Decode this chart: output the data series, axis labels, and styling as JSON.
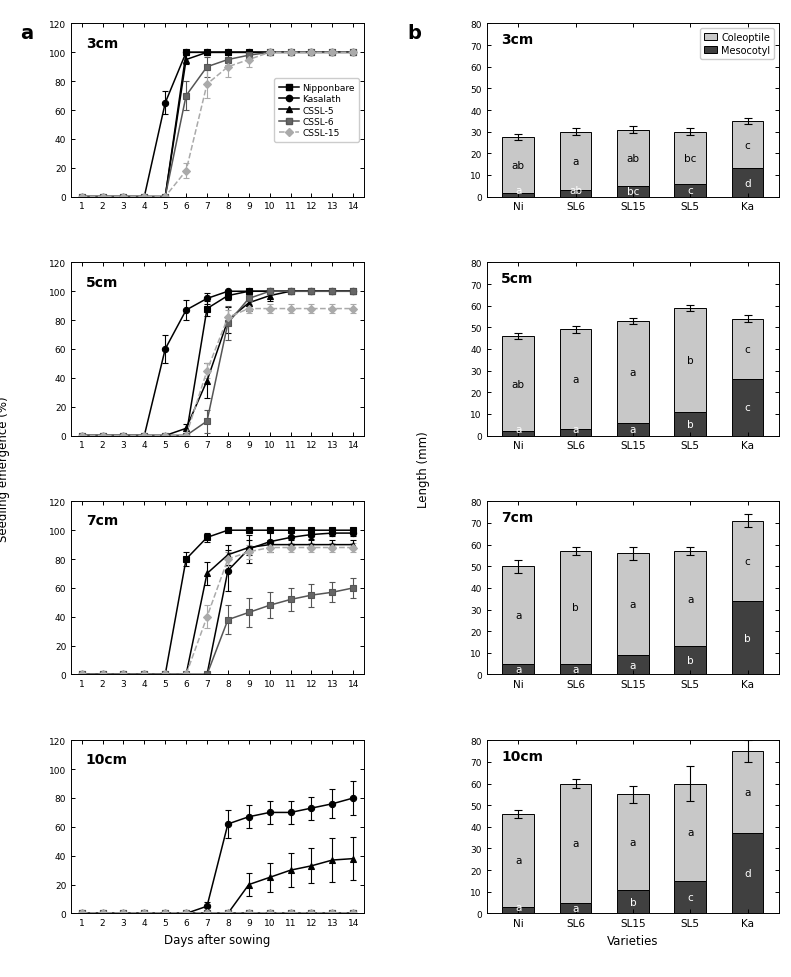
{
  "days": [
    1,
    2,
    3,
    4,
    5,
    6,
    7,
    8,
    9,
    10,
    11,
    12,
    13,
    14
  ],
  "line_labels": [
    "Nipponbare",
    "Kasalath",
    "CSSL-5",
    "CSSL-6",
    "CSSL-15"
  ],
  "line_colors": [
    "#000000",
    "#000000",
    "#000000",
    "#555555",
    "#aaaaaa"
  ],
  "line_styles": [
    "-",
    "-",
    "-",
    "-",
    "--"
  ],
  "line_markers": [
    "s",
    "o",
    "^",
    "s",
    "D"
  ],
  "line_markerfacecolors": [
    "#000000",
    "#000000",
    "#000000",
    "#666666",
    "#aaaaaa"
  ],
  "depths": [
    "3cm",
    "5cm",
    "7cm",
    "10cm"
  ],
  "emergence": {
    "3cm": {
      "Nipponbare": [
        0,
        0,
        0,
        0,
        0,
        100,
        100,
        100,
        100,
        100,
        100,
        100,
        100,
        100
      ],
      "Kasalath": [
        0,
        0,
        0,
        0,
        65,
        100,
        100,
        100,
        100,
        100,
        100,
        100,
        100,
        100
      ],
      "CSSL-5": [
        0,
        0,
        0,
        0,
        0,
        95,
        100,
        100,
        100,
        100,
        100,
        100,
        100,
        100
      ],
      "CSSL-6": [
        0,
        0,
        0,
        0,
        0,
        70,
        90,
        95,
        98,
        100,
        100,
        100,
        100,
        100
      ],
      "CSSL-15": [
        0,
        0,
        0,
        0,
        0,
        18,
        78,
        90,
        95,
        100,
        100,
        100,
        100,
        100
      ]
    },
    "5cm": {
      "Nipponbare": [
        0,
        0,
        0,
        0,
        0,
        0,
        88,
        97,
        100,
        100,
        100,
        100,
        100,
        100
      ],
      "Kasalath": [
        0,
        0,
        0,
        0,
        60,
        87,
        95,
        100,
        100,
        100,
        100,
        100,
        100,
        100
      ],
      "CSSL-5": [
        0,
        0,
        0,
        0,
        0,
        5,
        38,
        80,
        92,
        97,
        100,
        100,
        100,
        100
      ],
      "CSSL-6": [
        0,
        0,
        0,
        0,
        0,
        0,
        10,
        78,
        95,
        100,
        100,
        100,
        100,
        100
      ],
      "CSSL-15": [
        0,
        0,
        0,
        0,
        0,
        0,
        45,
        82,
        88,
        88,
        88,
        88,
        88,
        88
      ]
    },
    "7cm": {
      "Nipponbare": [
        0,
        0,
        0,
        0,
        0,
        80,
        95,
        100,
        100,
        100,
        100,
        100,
        100,
        100
      ],
      "Kasalath": [
        0,
        0,
        0,
        0,
        0,
        0,
        0,
        72,
        87,
        92,
        95,
        97,
        98,
        98
      ],
      "CSSL-5": [
        0,
        0,
        0,
        0,
        0,
        0,
        70,
        83,
        88,
        90,
        90,
        90,
        90,
        90
      ],
      "CSSL-6": [
        0,
        0,
        0,
        0,
        0,
        0,
        0,
        38,
        43,
        48,
        52,
        55,
        57,
        60
      ],
      "CSSL-15": [
        0,
        0,
        0,
        0,
        0,
        0,
        40,
        80,
        85,
        88,
        88,
        88,
        88,
        88
      ]
    },
    "10cm": {
      "Nipponbare": [
        0,
        0,
        0,
        0,
        0,
        0,
        0,
        0,
        0,
        0,
        0,
        0,
        0,
        0
      ],
      "Kasalath": [
        0,
        0,
        0,
        0,
        0,
        0,
        5,
        62,
        67,
        70,
        70,
        73,
        76,
        80
      ],
      "CSSL-5": [
        0,
        0,
        0,
        0,
        0,
        0,
        0,
        0,
        20,
        25,
        30,
        33,
        37,
        38
      ],
      "CSSL-6": [
        0,
        0,
        0,
        0,
        0,
        0,
        0,
        0,
        0,
        0,
        0,
        0,
        0,
        0
      ],
      "CSSL-15": [
        0,
        0,
        0,
        0,
        0,
        0,
        0,
        0,
        0,
        0,
        0,
        0,
        0,
        0
      ]
    }
  },
  "emergence_err": {
    "3cm": {
      "Nipponbare": [
        0,
        0,
        0,
        0,
        0,
        0,
        0,
        0,
        0,
        0,
        0,
        0,
        0,
        0
      ],
      "Kasalath": [
        0,
        0,
        0,
        0,
        8,
        0,
        0,
        0,
        0,
        0,
        0,
        0,
        0,
        0
      ],
      "CSSL-5": [
        0,
        0,
        0,
        0,
        0,
        3,
        0,
        0,
        0,
        0,
        0,
        0,
        0,
        0
      ],
      "CSSL-6": [
        0,
        0,
        0,
        0,
        0,
        10,
        7,
        4,
        2,
        0,
        0,
        0,
        0,
        0
      ],
      "CSSL-15": [
        0,
        0,
        0,
        0,
        0,
        5,
        10,
        7,
        5,
        0,
        0,
        0,
        0,
        0
      ]
    },
    "5cm": {
      "Nipponbare": [
        0,
        0,
        0,
        0,
        0,
        0,
        5,
        3,
        0,
        0,
        0,
        0,
        0,
        0
      ],
      "Kasalath": [
        0,
        0,
        0,
        0,
        10,
        7,
        4,
        0,
        0,
        0,
        0,
        0,
        0,
        0
      ],
      "CSSL-5": [
        0,
        0,
        0,
        0,
        0,
        3,
        12,
        9,
        6,
        4,
        0,
        0,
        0,
        0
      ],
      "CSSL-6": [
        0,
        0,
        0,
        0,
        0,
        0,
        8,
        12,
        5,
        0,
        0,
        0,
        0,
        0
      ],
      "CSSL-15": [
        0,
        0,
        0,
        0,
        0,
        0,
        5,
        5,
        3,
        3,
        3,
        3,
        3,
        3
      ]
    },
    "7cm": {
      "Nipponbare": [
        0,
        0,
        0,
        0,
        0,
        5,
        3,
        0,
        0,
        0,
        0,
        0,
        0,
        0
      ],
      "Kasalath": [
        0,
        0,
        0,
        0,
        0,
        0,
        0,
        14,
        10,
        7,
        5,
        3,
        2,
        2
      ],
      "CSSL-5": [
        0,
        0,
        0,
        0,
        0,
        0,
        8,
        7,
        5,
        3,
        3,
        3,
        3,
        3
      ],
      "CSSL-6": [
        0,
        0,
        0,
        0,
        0,
        0,
        0,
        10,
        10,
        9,
        8,
        8,
        7,
        7
      ],
      "CSSL-15": [
        0,
        0,
        0,
        0,
        0,
        0,
        8,
        5,
        5,
        3,
        3,
        3,
        3,
        3
      ]
    },
    "10cm": {
      "Nipponbare": [
        0,
        0,
        0,
        0,
        0,
        0,
        0,
        0,
        0,
        0,
        0,
        0,
        0,
        0
      ],
      "Kasalath": [
        0,
        0,
        0,
        0,
        0,
        0,
        3,
        10,
        8,
        8,
        8,
        8,
        10,
        12
      ],
      "CSSL-5": [
        0,
        0,
        0,
        0,
        0,
        0,
        0,
        0,
        8,
        10,
        12,
        12,
        15,
        15
      ],
      "CSSL-6": [
        0,
        0,
        0,
        0,
        0,
        0,
        0,
        0,
        0,
        0,
        0,
        0,
        0,
        0
      ],
      "CSSL-15": [
        0,
        0,
        0,
        0,
        0,
        0,
        0,
        0,
        0,
        0,
        0,
        0,
        0,
        0
      ]
    }
  },
  "bar_categories": [
    "Ni",
    "SL6",
    "SL15",
    "SL5",
    "Ka"
  ],
  "coleoptile": {
    "3cm": [
      26,
      27,
      26,
      24,
      22
    ],
    "5cm": [
      44,
      46,
      47,
      48,
      28
    ],
    "7cm": [
      45,
      52,
      47,
      44,
      37
    ],
    "10cm": [
      43,
      55,
      44,
      45,
      38
    ]
  },
  "mesocotyl": {
    "3cm": [
      1.5,
      3,
      5,
      6,
      13
    ],
    "5cm": [
      2,
      3,
      6,
      11,
      26
    ],
    "7cm": [
      5,
      5,
      9,
      13,
      34
    ],
    "10cm": [
      3,
      5,
      11,
      15,
      37
    ]
  },
  "total_err": {
    "3cm": [
      1.5,
      1.5,
      1.5,
      1.5,
      1.5
    ],
    "5cm": [
      1.5,
      1.5,
      1.5,
      1.5,
      1.5
    ],
    "7cm": [
      3,
      2,
      3,
      2,
      3
    ],
    "10cm": [
      2,
      2,
      4,
      8,
      5
    ]
  },
  "coleoptile_labels": {
    "3cm": [
      "ab",
      "a",
      "ab",
      "bc",
      "c"
    ],
    "5cm": [
      "ab",
      "a",
      "a",
      "b",
      "c"
    ],
    "7cm": [
      "a",
      "b",
      "a",
      "a",
      "c"
    ],
    "10cm": [
      "a",
      "a",
      "a",
      "a",
      "a"
    ]
  },
  "mesocotyl_labels": {
    "3cm": [
      "a",
      "ab",
      "bc",
      "c",
      "d"
    ],
    "5cm": [
      "a",
      "a",
      "a",
      "b",
      "c"
    ],
    "7cm": [
      "a",
      "a",
      "a",
      "b",
      "b"
    ],
    "10cm": [
      "a",
      "a",
      "b",
      "c",
      "d"
    ]
  },
  "coleoptile_color": "#c8c8c8",
  "mesocotyl_color": "#404040",
  "bar_ylim": [
    0,
    80
  ],
  "bar_yticks": [
    0,
    10,
    20,
    30,
    40,
    50,
    60,
    70,
    80
  ],
  "line_ylim": [
    0,
    120
  ],
  "line_yticks": [
    0,
    20,
    40,
    60,
    80,
    100,
    120
  ]
}
